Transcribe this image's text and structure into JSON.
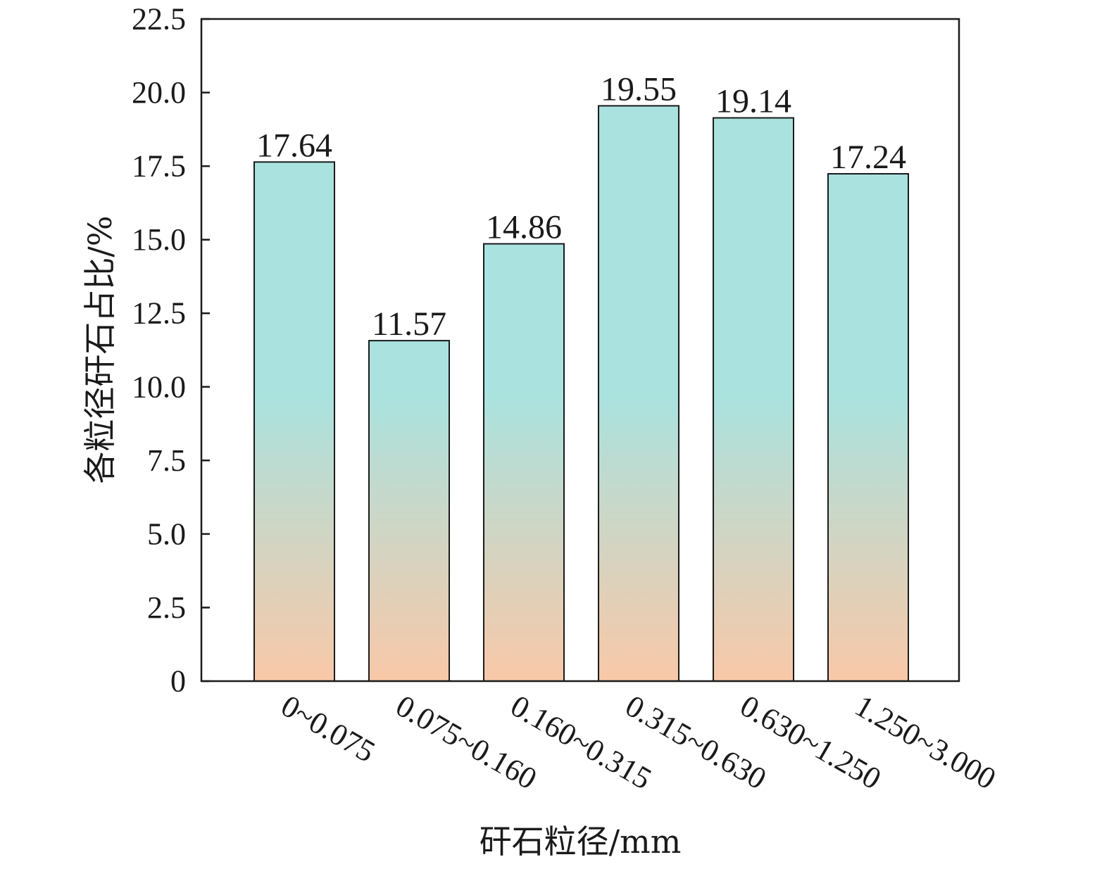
{
  "chart_data": {
    "type": "bar",
    "categories": [
      "0~0.075",
      "0.075~0.160",
      "0.160~0.315",
      "0.315~0.630",
      "0.630~1.250",
      "1.250~3.000"
    ],
    "values": [
      17.64,
      11.57,
      14.86,
      19.55,
      19.14,
      17.24
    ],
    "data_labels": [
      "17.64",
      "11.57",
      "14.86",
      "19.55",
      "19.14",
      "17.24"
    ],
    "xlabel": "矸石粒径/mm",
    "ylabel": "各粒径矸石占比/%",
    "ylim": [
      0,
      22.5
    ],
    "yticks": [
      0,
      2.5,
      5.0,
      7.5,
      10.0,
      12.5,
      15.0,
      17.5,
      20.0,
      22.5
    ],
    "ytick_labels": [
      "0",
      "2.5",
      "5.0",
      "7.5",
      "10.0",
      "12.5",
      "15.0",
      "17.5",
      "20.0",
      "22.5"
    ],
    "grid": false,
    "legend": "none",
    "colors": {
      "bar_top": "#a9e2df",
      "bar_bottom": "#f9c8a8",
      "outline": "#1a1a1a"
    }
  }
}
